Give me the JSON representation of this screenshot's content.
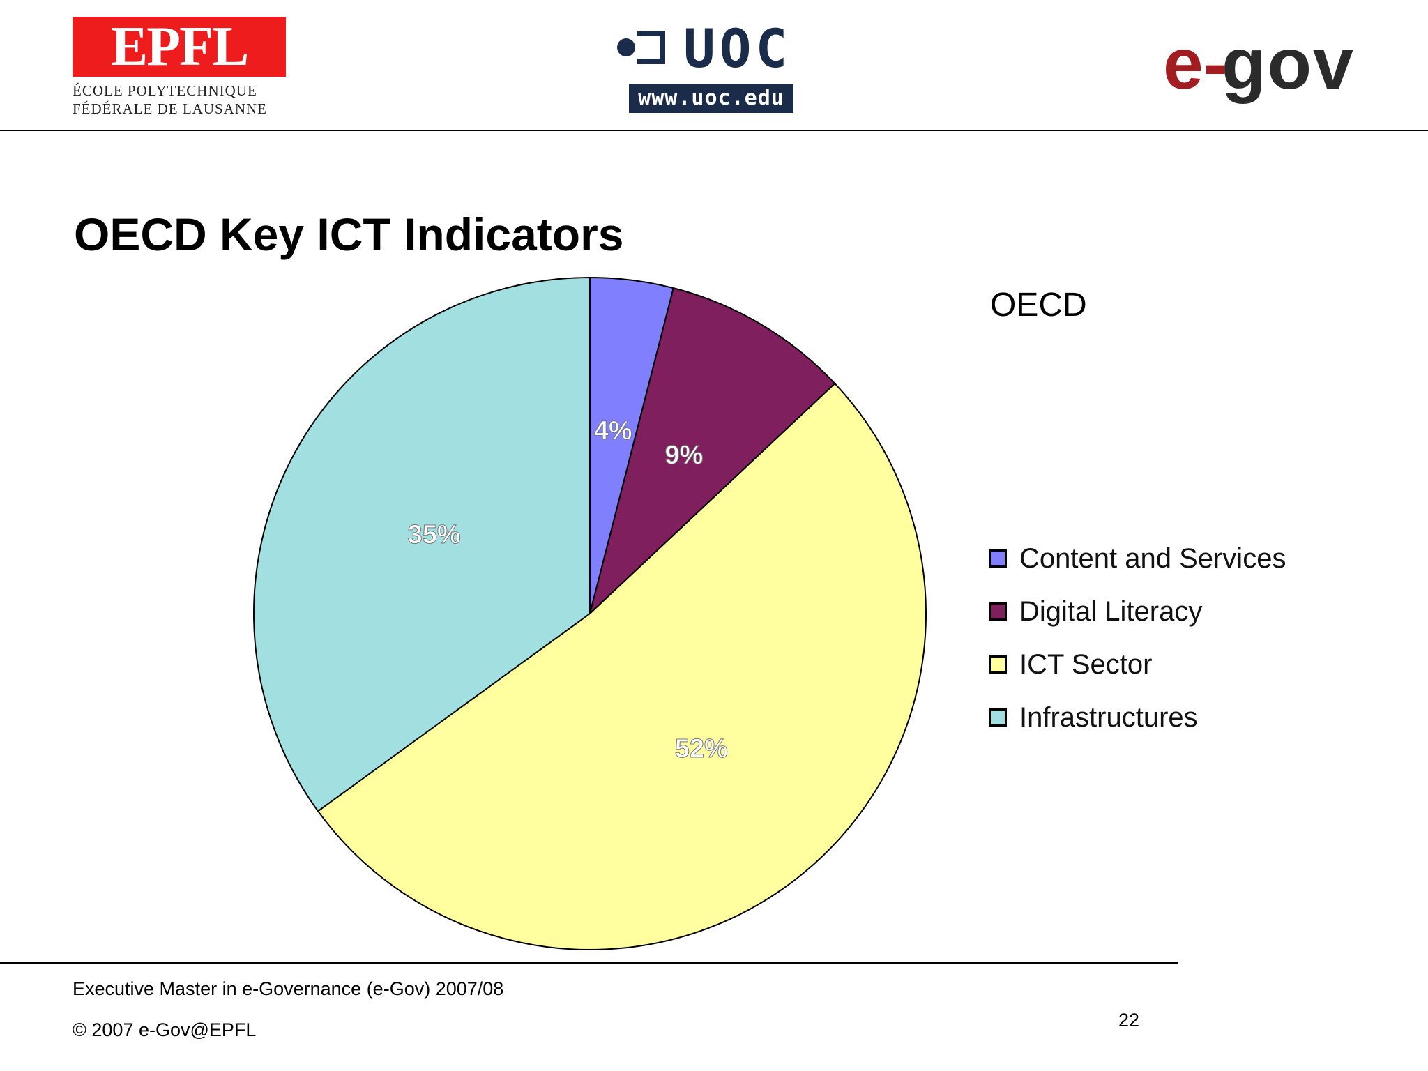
{
  "header": {
    "epfl": {
      "mark": "EPFL",
      "line1": "ÉCOLE POLYTECHNIQUE",
      "line2": "FÉDÉRALE DE LAUSANNE",
      "color": "#ee1c1c"
    },
    "uoc": {
      "name": "UOC",
      "url": "www.uoc.edu",
      "color": "#1a2c4a"
    },
    "egov": {
      "part1": "e-",
      "part2": "gov",
      "accent": "#a11d22"
    }
  },
  "slide": {
    "title": "OECD Key ICT Indicators"
  },
  "chart_data": {
    "type": "pie",
    "title": "OECD",
    "categories": [
      "Content and Services",
      "Digital Literacy",
      "ICT Sector",
      "Infrastructures"
    ],
    "values": [
      4,
      9,
      52,
      35
    ],
    "labels": [
      "4%",
      "9%",
      "52%",
      "35%"
    ],
    "colors": [
      "#8080ff",
      "#7f1f5e",
      "#ffff9f",
      "#a2dfe0"
    ],
    "label_colors": [
      "#ffffff",
      "#ffffff",
      "#ffffff",
      "#ffffff"
    ],
    "legend": "right",
    "start_angle_deg": 0,
    "direction": "clockwise"
  },
  "footer": {
    "line1": "Executive Master in e-Governance  (e-Gov)  2007/08",
    "line2": "© 2007  e-Gov@EPFL",
    "page": "22"
  }
}
